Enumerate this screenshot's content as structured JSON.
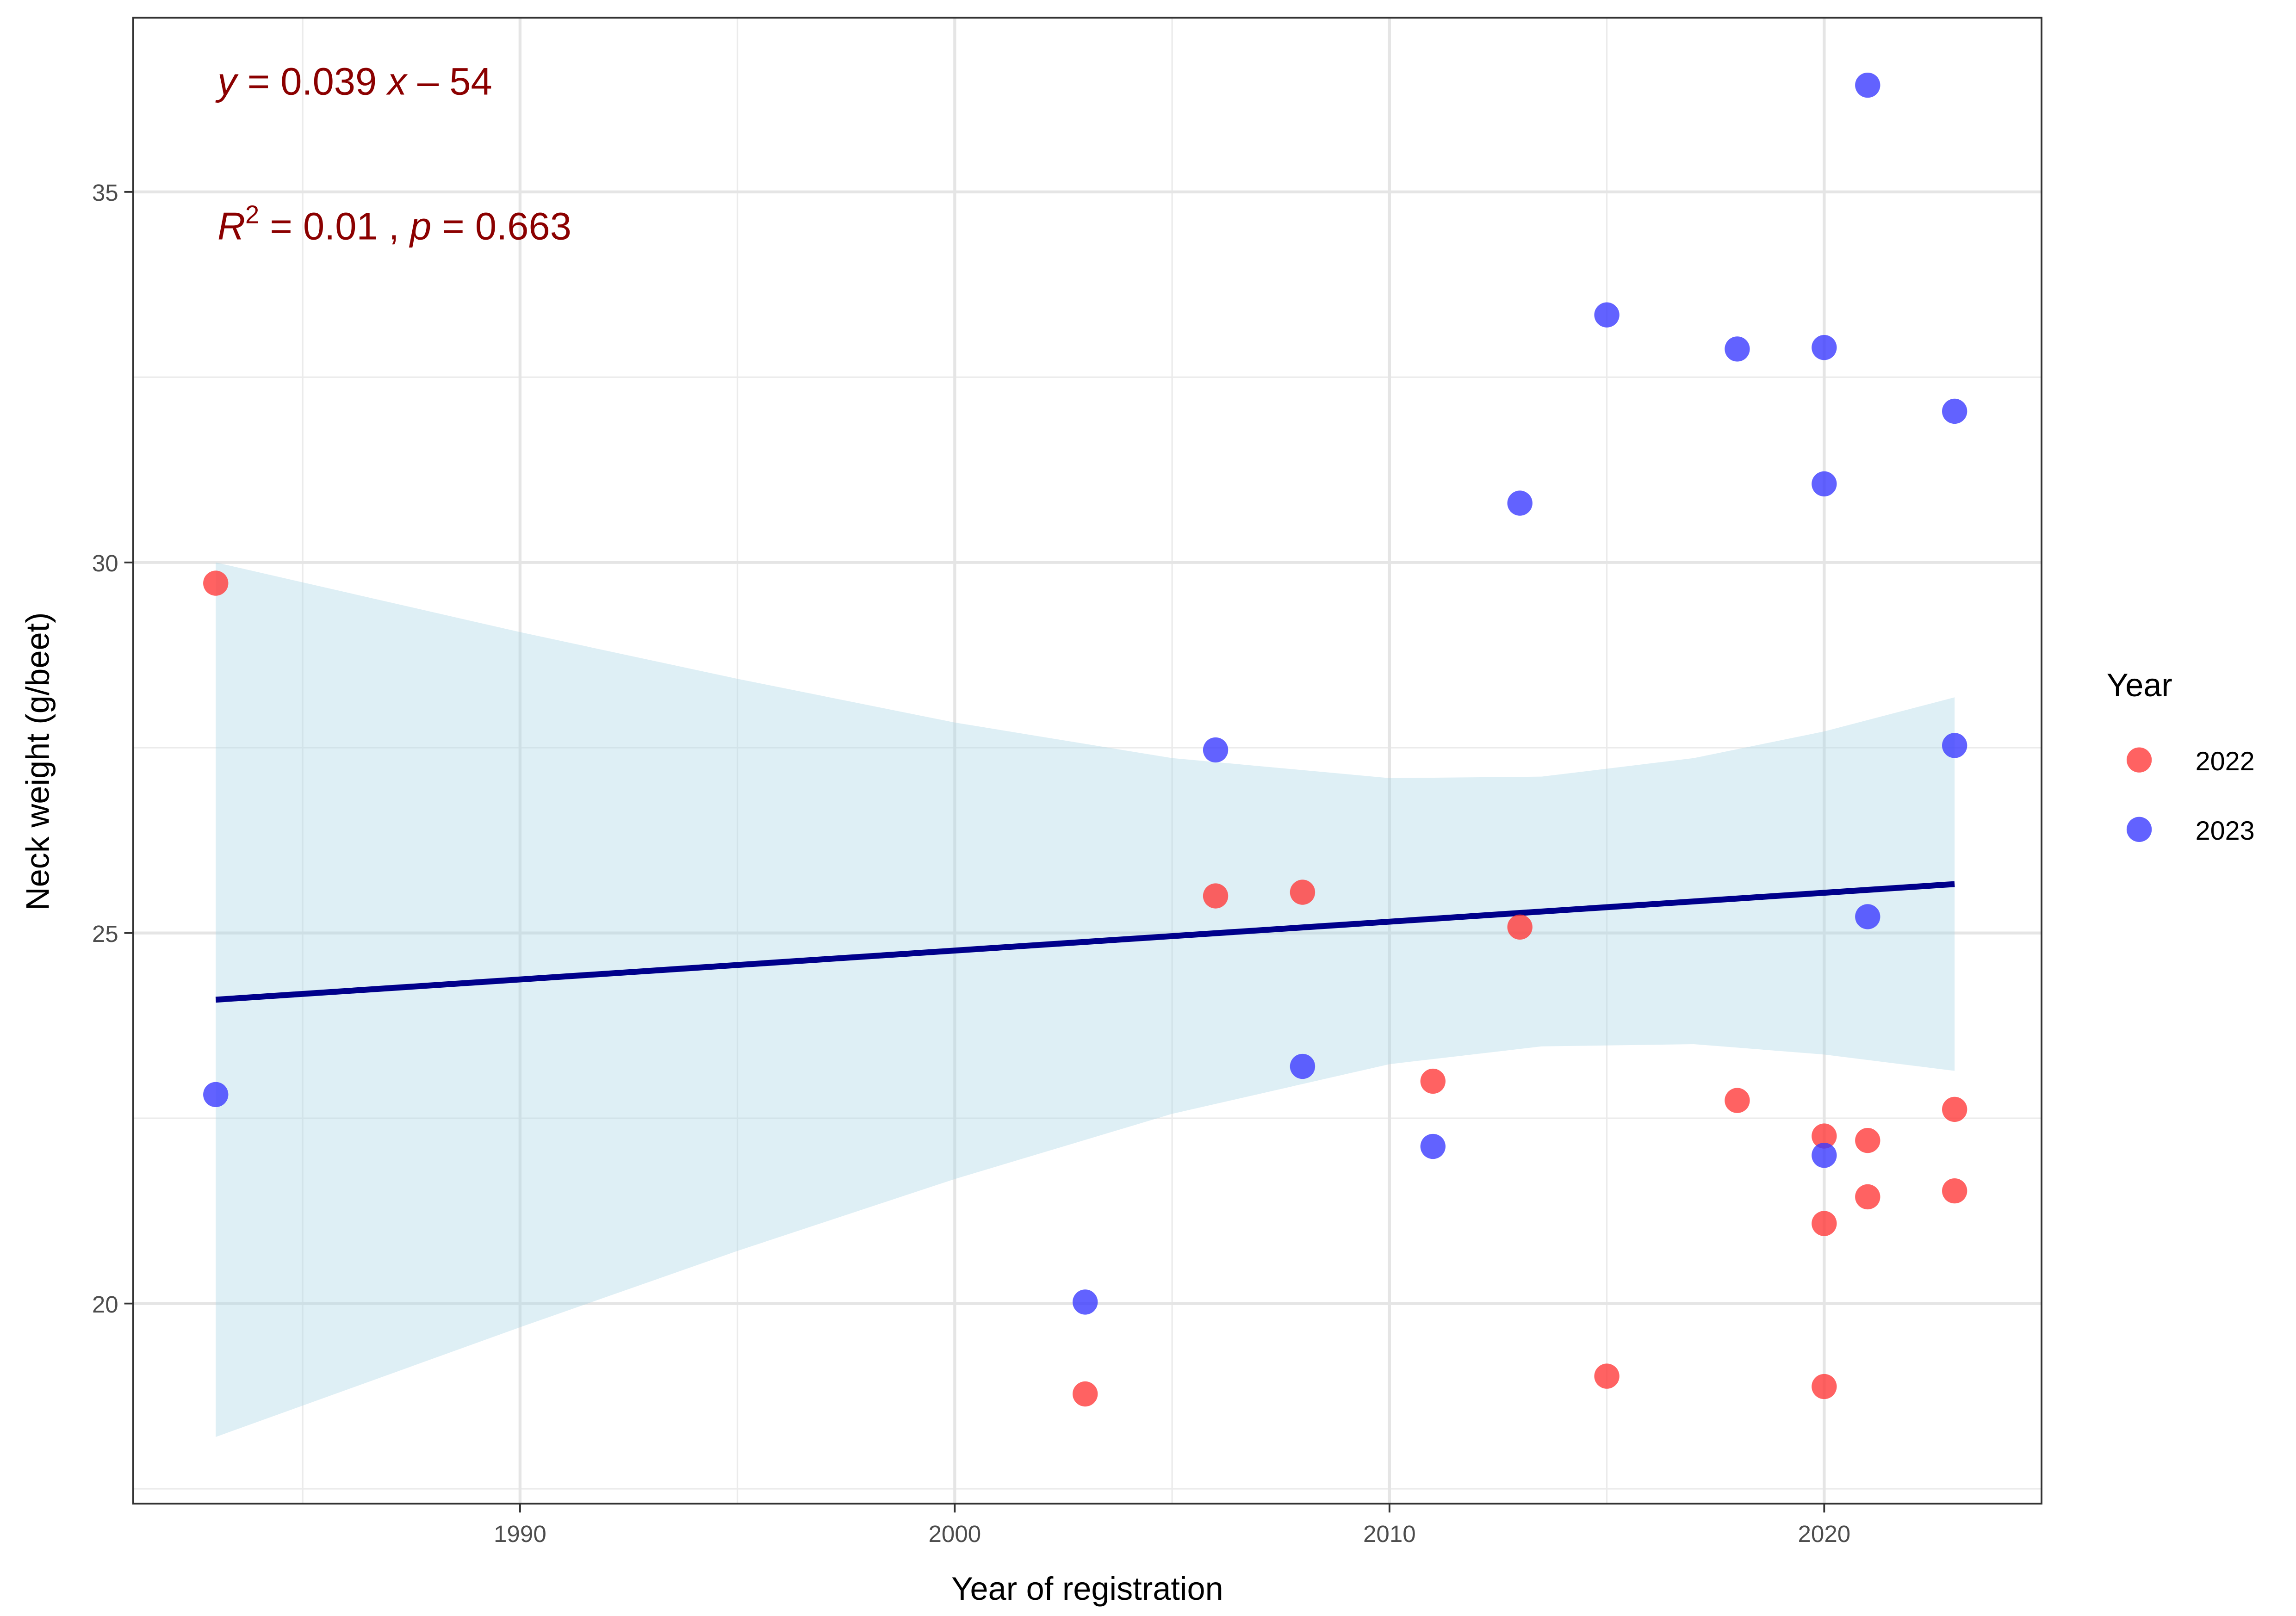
{
  "chart_data": {
    "type": "scatter",
    "title": "",
    "xlabel": "Year of registration",
    "ylabel": "Neck weight (g/beet)",
    "xlim": [
      1981.1,
      2025.0
    ],
    "ylim": [
      17.3,
      37.35
    ],
    "x_ticks": [
      1990,
      2000,
      2010,
      2020
    ],
    "x_tick_labels": [
      "1990",
      "2000",
      "2010",
      "2020"
    ],
    "y_ticks": [
      20,
      25,
      30,
      35
    ],
    "y_tick_labels": [
      "20",
      "25",
      "30",
      "35"
    ],
    "grid": true,
    "legend": {
      "title": "Year",
      "placement": "right",
      "entries": [
        "2022",
        "2023"
      ]
    },
    "colors": {
      "2022": "#ff3b3b",
      "2023": "#3b3bff",
      "line": "#00008b",
      "band": "#add8e6",
      "annotation": "#8b0000"
    },
    "series": [
      {
        "name": "2022",
        "points": [
          [
            1983,
            29.72
          ],
          [
            2006,
            25.5
          ],
          [
            2008,
            25.55
          ],
          [
            2013,
            25.08
          ],
          [
            2011,
            23.0
          ],
          [
            2018,
            22.74
          ],
          [
            2020,
            22.26
          ],
          [
            2021,
            22.2
          ],
          [
            2023,
            22.62
          ],
          [
            2021,
            21.44
          ],
          [
            2023,
            21.52
          ],
          [
            2020,
            21.08
          ],
          [
            2003,
            18.78
          ],
          [
            2015,
            19.02
          ],
          [
            2020,
            18.88
          ]
        ]
      },
      {
        "name": "2023",
        "points": [
          [
            2021,
            36.44
          ],
          [
            2015,
            33.34
          ],
          [
            2018,
            32.88
          ],
          [
            2020,
            32.9
          ],
          [
            2023,
            32.04
          ],
          [
            2020,
            31.06
          ],
          [
            2013,
            30.8
          ],
          [
            2006,
            27.47
          ],
          [
            2023,
            27.53
          ],
          [
            2021,
            25.22
          ],
          [
            1983,
            22.82
          ],
          [
            2008,
            23.2
          ],
          [
            2011,
            22.12
          ],
          [
            2020,
            22.0
          ],
          [
            2003,
            20.02
          ]
        ]
      }
    ],
    "regression": {
      "line": [
        [
          1983,
          24.1
        ],
        [
          2023,
          25.66
        ]
      ],
      "confidence_band": {
        "x": [
          1983,
          1990,
          1995,
          2000,
          2005,
          2010,
          2013.5,
          2017,
          2020,
          2023
        ],
        "lower": [
          18.2,
          19.68,
          20.71,
          21.68,
          22.56,
          23.23,
          23.47,
          23.5,
          23.36,
          23.14
        ],
        "upper": [
          30.0,
          29.06,
          28.43,
          27.84,
          27.36,
          27.09,
          27.11,
          27.36,
          27.72,
          28.18
        ]
      }
    },
    "annotations": {
      "equation": {
        "y": "y",
        "rest": " = 0.039 ",
        "x": "x",
        "tail": " – 54"
      },
      "stats": {
        "r": "R",
        "sup": "2",
        "mid": " = 0.01 , ",
        "p": "p",
        "tail": " = 0.663"
      }
    }
  }
}
